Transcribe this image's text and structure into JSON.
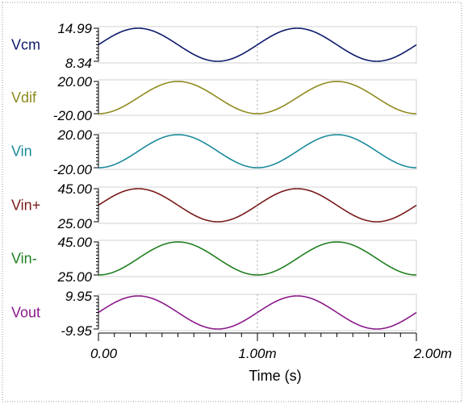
{
  "chart_data": {
    "type": "line",
    "xlabel": "Time (s)",
    "x_ticks": [
      "0.00",
      "1.00m",
      "2.00m"
    ],
    "x_range_s": [
      0,
      0.002
    ],
    "frequency_hz": 1000,
    "grid": "single vertical dotted line at 1.00m",
    "series": [
      {
        "name": "Vcm",
        "color": "#0d1a6b",
        "y_top_label": "14.99",
        "y_bottom_label": "8.34",
        "ylim": [
          8.34,
          14.99
        ],
        "phase": "sin"
      },
      {
        "name": "Vdif",
        "color": "#8f8a1e",
        "y_top_label": "20.00",
        "y_bottom_label": "-20.00",
        "ylim": [
          -20,
          20
        ],
        "phase": "-cos"
      },
      {
        "name": "Vin",
        "color": "#1a8a9a",
        "y_top_label": "20.00",
        "y_bottom_label": "-20.00",
        "ylim": [
          -20,
          20
        ],
        "phase": "-cos"
      },
      {
        "name": "Vin+",
        "color": "#7a1a1a",
        "y_top_label": "45.00",
        "y_bottom_label": "25.00",
        "ylim": [
          25,
          45
        ],
        "phase": "sin"
      },
      {
        "name": "Vin-",
        "color": "#1f7f1f",
        "y_top_label": "45.00",
        "y_bottom_label": "25.00",
        "ylim": [
          25,
          45
        ],
        "phase": "-cos"
      },
      {
        "name": "Vout",
        "color": "#8b1a8b",
        "y_top_label": "9.95",
        "y_bottom_label": "-9.95",
        "ylim": [
          -9.95,
          9.95
        ],
        "phase": "sin"
      }
    ]
  }
}
